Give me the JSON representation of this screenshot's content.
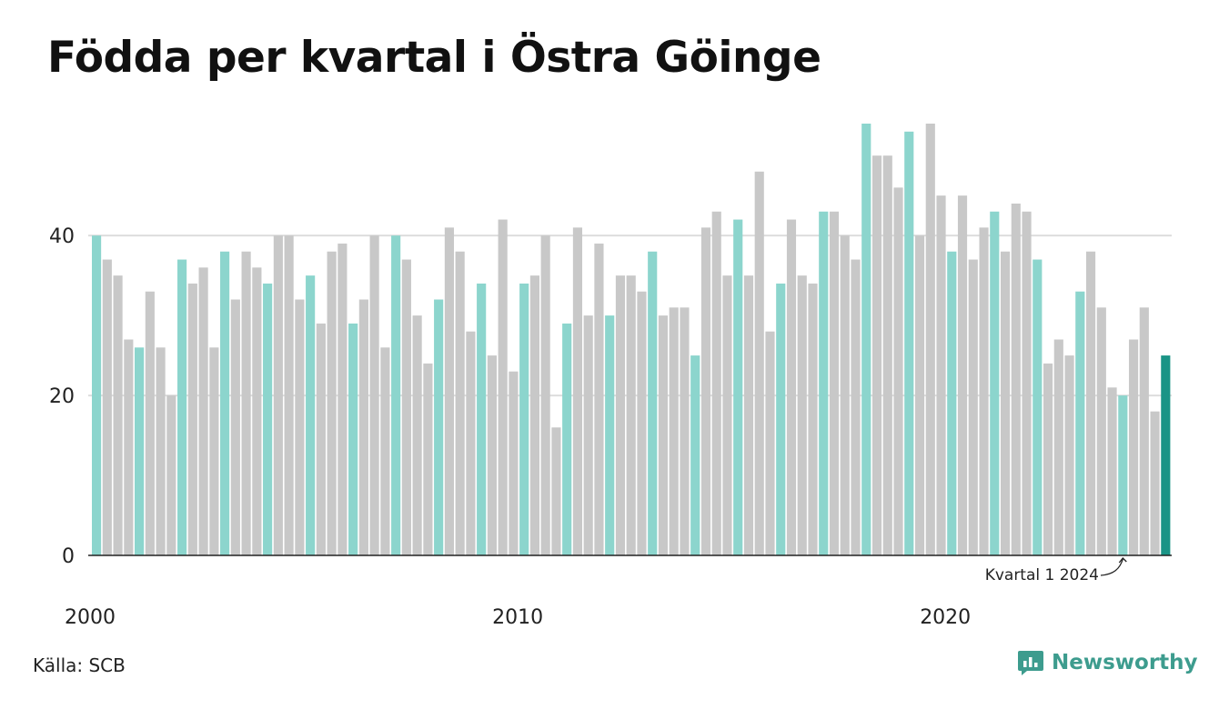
{
  "title": "Födda per kvartal i Östra Göinge",
  "source": "Källa: SCB",
  "brand": "Newsworthy",
  "colors": {
    "q1": "#8cd5cd",
    "other": "#c8c8c8",
    "highlight": "#1a9486",
    "grid": "#dddddd",
    "brand": "#3d9c8e"
  },
  "chart_data": {
    "type": "bar",
    "title": "Födda per kvartal i Östra Göinge",
    "start_year": 2000,
    "start_quarter": 1,
    "values": [
      40,
      37,
      35,
      27,
      26,
      33,
      26,
      20,
      37,
      34,
      36,
      26,
      38,
      32,
      38,
      36,
      34,
      40,
      40,
      32,
      35,
      29,
      38,
      39,
      29,
      32,
      40,
      26,
      40,
      37,
      30,
      24,
      32,
      41,
      38,
      28,
      34,
      25,
      42,
      23,
      34,
      35,
      40,
      16,
      29,
      41,
      30,
      39,
      30,
      35,
      35,
      33,
      38,
      30,
      31,
      31,
      25,
      41,
      43,
      35,
      42,
      35,
      48,
      28,
      34,
      42,
      35,
      34,
      43,
      43,
      40,
      37,
      54,
      50,
      50,
      46,
      53,
      40,
      54,
      45,
      38,
      45,
      37,
      41,
      43,
      38,
      44,
      43,
      37,
      24,
      27,
      25,
      33,
      38,
      31,
      21,
      20,
      27,
      31,
      18,
      25
    ],
    "x_tick_labels": [
      "2000",
      "2010",
      "2020"
    ],
    "y_ticks": [
      0,
      20,
      40
    ],
    "ylim": [
      0,
      54
    ],
    "grid": true,
    "annotation": "Kvartal 1 2024"
  }
}
